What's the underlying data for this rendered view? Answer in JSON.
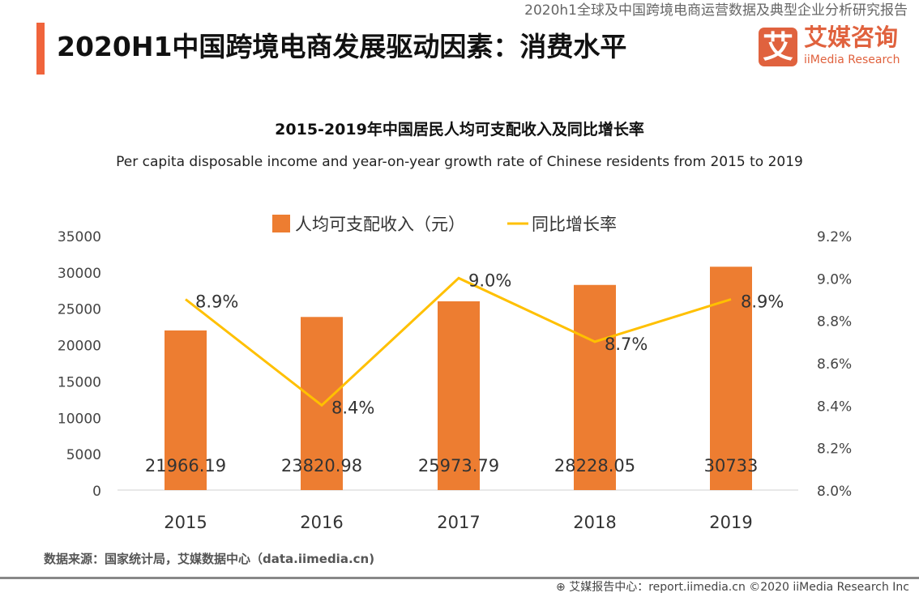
{
  "header": {
    "report_name": "2020h1全球及中国跨境电商运营数据及典型企业分析研究报告",
    "title": "2020H1中国跨境电商发展驱动因素：消费水平",
    "logo_mark": "艾",
    "logo_cn": "艾媒咨询",
    "logo_en": "iiMedia Research"
  },
  "colors": {
    "bar": "#ed7d31",
    "line": "#ffc000",
    "accent": "#f0643c"
  },
  "chart_data": {
    "type": "bar+line",
    "title": "2015-2019年中国居民人均可支配收入及同比增长率",
    "subtitle": "Per capita disposable income and year-on-year growth rate of Chinese residents from  2015 to 2019",
    "categories": [
      "2015",
      "2016",
      "2017",
      "2018",
      "2019"
    ],
    "series": [
      {
        "name": "人均可支配收入（元）",
        "type": "bar",
        "axis": "left",
        "values": [
          21966.19,
          23820.98,
          25973.79,
          28228.05,
          30733
        ],
        "labels": [
          "21966.19",
          "23820.98",
          "25973.79",
          "28228.05",
          "30733"
        ]
      },
      {
        "name": "同比增长率",
        "type": "line",
        "axis": "right",
        "values": [
          8.9,
          8.4,
          9.0,
          8.7,
          8.9
        ],
        "labels": [
          "8.9%",
          "8.4%",
          "9.0%",
          "8.7%",
          "8.9%"
        ]
      }
    ],
    "left_axis": {
      "range": [
        0,
        35000
      ],
      "ticks": [
        "0",
        "5000",
        "10000",
        "15000",
        "20000",
        "25000",
        "30000",
        "35000"
      ]
    },
    "right_axis": {
      "range": [
        8.0,
        9.2
      ],
      "ticks": [
        "8.0%",
        "8.2%",
        "8.4%",
        "8.6%",
        "8.8%",
        "9.0%",
        "9.2%"
      ]
    },
    "legend_position": "top",
    "grid": false
  },
  "footer": {
    "source": "数据来源：国家统计局，艾媒数据中心（data.iimedia.cn)",
    "credit": "艾媒报告中心：report.iimedia.cn  ©2020  iiMedia Research  Inc"
  }
}
